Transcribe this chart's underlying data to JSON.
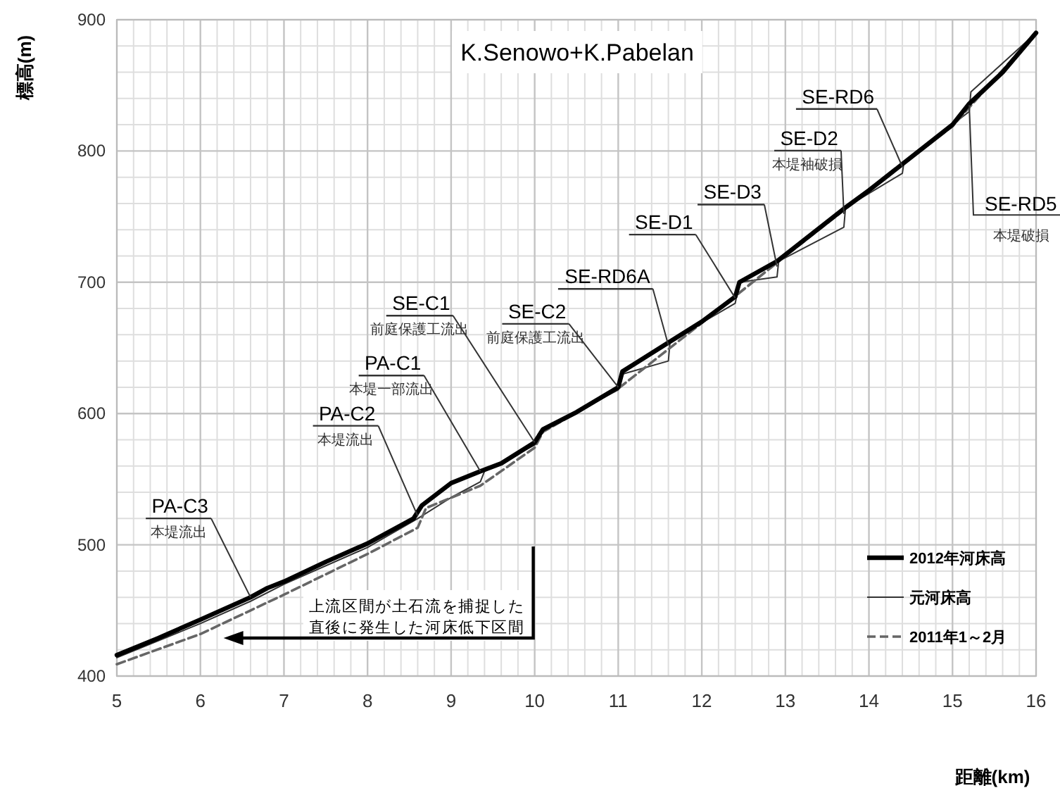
{
  "chart_data": {
    "type": "line",
    "title": "K.Senowo+K.Pabelan",
    "xlabel": "距離(km)",
    "ylabel": "標高(m)",
    "xlim": [
      5,
      16
    ],
    "xticks": [
      5,
      6,
      7,
      8,
      9,
      10,
      11,
      12,
      13,
      14,
      15,
      16
    ],
    "ylim": [
      400,
      900
    ],
    "yticks": [
      400,
      500,
      600,
      700,
      800,
      900
    ],
    "grid": true,
    "legend": "bottom right",
    "series": [
      {
        "name": "2012年河床高",
        "color": "#000000",
        "line_style": "solid",
        "x": [
          5,
          5.5,
          6,
          6.6,
          6.8,
          7,
          7.5,
          8,
          8.55,
          8.65,
          9,
          9.35,
          9.6,
          10,
          10.1,
          10.5,
          11,
          11.05,
          11.6,
          12,
          12.4,
          12.45,
          12.9,
          13.3,
          13.7,
          14,
          14.4,
          15,
          15.2,
          15.6,
          16
        ],
        "values": [
          416,
          429,
          443,
          460,
          467,
          472,
          487,
          501,
          520,
          530,
          547,
          556,
          562,
          578,
          588,
          601,
          620,
          632,
          654,
          670,
          689,
          700,
          716,
          736,
          756,
          770,
          790,
          820,
          836,
          860,
          890
        ]
      },
      {
        "name": "元河床高",
        "color": "#333333",
        "line_style": "solid",
        "x": [
          5,
          6,
          6.6,
          7,
          8,
          8.6,
          9,
          9.35,
          9.4,
          10,
          10.1,
          11,
          11.05,
          11.6,
          11.62,
          12.4,
          12.45,
          12.9,
          12.92,
          13.7,
          13.72,
          14.4,
          14.42,
          15.2,
          15.22,
          16
        ],
        "values": [
          414,
          440,
          457,
          470,
          498,
          520,
          536,
          548,
          556,
          576,
          588,
          618,
          630,
          640,
          655,
          684,
          700,
          704,
          716,
          742,
          757,
          783,
          792,
          830,
          845,
          890
        ]
      },
      {
        "name": "2011年1～2月",
        "color": "#666666",
        "line_style": "dashed",
        "x": [
          5,
          6,
          6.6,
          7,
          8,
          8.6,
          8.7,
          9.35,
          10,
          10.1,
          11,
          12,
          13,
          14,
          15,
          16
        ],
        "values": [
          409,
          432,
          450,
          462,
          493,
          513,
          528,
          545,
          574,
          586,
          619,
          669,
          720,
          770,
          819,
          890
        ]
      }
    ],
    "annotations": [
      {
        "text": "PA-C3\n本堤流出",
        "x": 6.6,
        "y": 460
      },
      {
        "text": "PA-C2\n本堤流出",
        "x": 8.6,
        "y": 522
      },
      {
        "text": "PA-C1\n本堤一部流出",
        "x": 9.35,
        "y": 556
      },
      {
        "text": "SE-C1\n前庭保護工流出",
        "x": 10,
        "y": 578
      },
      {
        "text": "SE-C2\n前庭保護工流出",
        "x": 11,
        "y": 620
      },
      {
        "text": "SE-RD6A",
        "x": 11.6,
        "y": 652
      },
      {
        "text": "SE-D1",
        "x": 12.4,
        "y": 688
      },
      {
        "text": "SE-D3",
        "x": 12.9,
        "y": 712
      },
      {
        "text": "SE-D2\n本堤袖破損",
        "x": 13.7,
        "y": 752
      },
      {
        "text": "SE-RD6",
        "x": 14.4,
        "y": 788
      },
      {
        "text": "SE-RD5\n本堤破損",
        "x": 15.2,
        "y": 835
      },
      "上流区間が土石流を捕捉した直後に発生した河床低下区間"
    ]
  }
}
